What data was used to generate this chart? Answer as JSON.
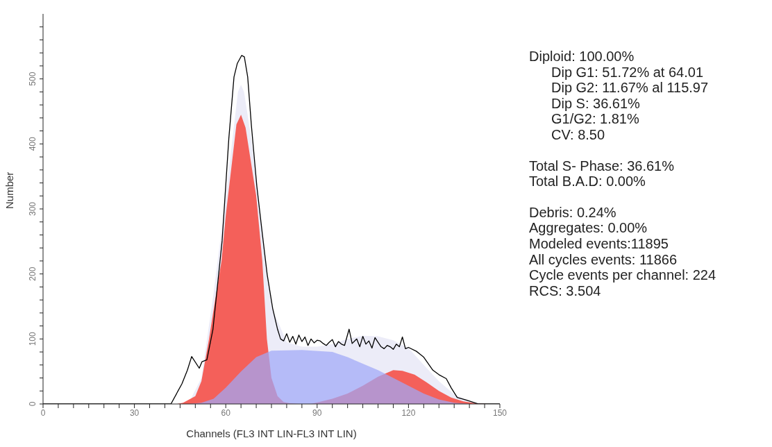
{
  "chart_data": {
    "type": "area",
    "xlabel": "Channels (FL3 INT LIN-FL3 INT LIN)",
    "ylabel": "Number",
    "xlim": [
      0,
      150
    ],
    "xticks": [
      0,
      {
        "value": 5,
        "label": null
      },
      {
        "value": 10,
        "label": null
      },
      {
        "value": 15,
        "label": null
      },
      {
        "value": 20,
        "label": null
      },
      {
        "value": 25,
        "label": null
      },
      30,
      {
        "value": 35,
        "label": null
      },
      {
        "value": 40,
        "label": null
      },
      {
        "value": 45,
        "label": null
      },
      {
        "value": 50,
        "label": null
      },
      {
        "value": 55,
        "label": null
      },
      60,
      {
        "value": 65,
        "label": null
      },
      {
        "value": 70,
        "label": null
      },
      {
        "value": 75,
        "label": null
      },
      {
        "value": 80,
        "label": null
      },
      {
        "value": 85,
        "label": null
      },
      90,
      {
        "value": 95,
        "label": null
      },
      {
        "value": 100,
        "label": null
      },
      {
        "value": 105,
        "label": null
      },
      {
        "value": 110,
        "label": null
      },
      {
        "value": 115,
        "label": null
      },
      120,
      {
        "value": 125,
        "label": null
      },
      {
        "value": 130,
        "label": null
      },
      {
        "value": 135,
        "label": null
      },
      {
        "value": 140,
        "label": null
      },
      {
        "value": 145,
        "label": null
      },
      150
    ],
    "ylim": [
      0,
      600
    ],
    "yticks": [
      0,
      {
        "value": 20,
        "label": null
      },
      {
        "value": 40,
        "label": null
      },
      {
        "value": 60,
        "label": null
      },
      {
        "value": 80,
        "label": null
      },
      100,
      {
        "value": 120,
        "label": null
      },
      {
        "value": 140,
        "label": null
      },
      {
        "value": 160,
        "label": null
      },
      {
        "value": 180,
        "label": null
      },
      200,
      {
        "value": 220,
        "label": null
      },
      {
        "value": 240,
        "label": null
      },
      {
        "value": 260,
        "label": null
      },
      {
        "value": 280,
        "label": null
      },
      300,
      {
        "value": 320,
        "label": null
      },
      {
        "value": 340,
        "label": null
      },
      {
        "value": 360,
        "label": null
      },
      {
        "value": 380,
        "label": null
      },
      400,
      {
        "value": 420,
        "label": null
      },
      {
        "value": 440,
        "label": null
      },
      {
        "value": 460,
        "label": null
      },
      {
        "value": 480,
        "label": null
      },
      500,
      {
        "value": 520,
        "label": null
      },
      {
        "value": 540,
        "label": null
      },
      {
        "value": 560,
        "label": null
      },
      {
        "value": 580,
        "label": null
      }
    ],
    "grid": false,
    "legend": false,
    "series": [
      {
        "color": "#ececf8",
        "x": [
          44,
          48,
          52,
          56,
          60,
          62,
          64,
          65,
          66,
          68,
          70,
          72,
          75,
          80,
          85,
          90,
          95,
          100,
          105,
          110,
          115,
          120,
          125,
          130,
          135,
          140,
          145
        ],
        "values": [
          0,
          3,
          40,
          170,
          320,
          400,
          480,
          491,
          480,
          420,
          350,
          260,
          150,
          95,
          88,
          88,
          92,
          100,
          105,
          104,
          98,
          86,
          60,
          35,
          15,
          4,
          0
        ]
      },
      {
        "color": "#f4605a",
        "x": [
          44,
          46,
          50,
          52,
          54.5,
          56.5,
          58.6,
          60,
          62,
          63.5,
          65,
          66.5,
          68,
          70,
          71,
          72,
          73.5,
          75,
          77,
          79,
          81,
          84
        ],
        "values": [
          0,
          2,
          12,
          35,
          100,
          160,
          220,
          290,
          370,
          430,
          445,
          425,
          380,
          320,
          270,
          220,
          100,
          40,
          12,
          3,
          1,
          0
        ]
      },
      {
        "color": "#f4605a",
        "x": [
          88,
          95,
          100,
          105,
          110,
          115,
          118,
          122,
          126,
          130,
          134,
          138,
          142,
          146
        ],
        "values": [
          0,
          8,
          16,
          28,
          42,
          52,
          51,
          45,
          33,
          20,
          10,
          4,
          1,
          0
        ]
      },
      {
        "color": "#a0a8f8",
        "x": [
          48,
          52,
          56,
          60,
          65,
          70,
          75,
          85,
          95,
          100,
          105,
          110,
          115,
          120,
          125,
          130,
          135,
          140
        ],
        "values": [
          0,
          2,
          8,
          25,
          50,
          72,
          82,
          83,
          80,
          72,
          62,
          52,
          40,
          28,
          16,
          7,
          2,
          0
        ]
      },
      {
        "type": "line",
        "color": "#000000",
        "x": [
          0,
          42,
          45.6,
          47.4,
          48.8,
          51.3,
          52.2,
          53.8,
          55.8,
          58.8,
          61,
          62.7,
          63.8,
          65.2,
          66.1,
          67.2,
          68.4,
          70.2,
          72,
          73.6,
          75.4,
          77,
          78,
          79,
          80,
          81,
          82,
          83,
          84,
          85,
          86,
          87,
          88,
          89,
          90,
          91,
          92,
          93,
          94,
          95,
          96,
          97,
          98,
          99,
          100.5,
          101.5,
          103,
          104,
          105,
          106,
          107,
          108,
          109,
          110,
          111,
          112,
          113,
          114,
          115,
          116,
          117,
          118,
          119,
          120,
          122.6,
          125,
          128,
          130,
          132.4,
          134,
          136,
          139,
          143,
          150
        ],
        "values": [
          0,
          0,
          31,
          52,
          73,
          55,
          65,
          68,
          115,
          251,
          408,
          503,
          524,
          536,
          534,
          503,
          429,
          335,
          262,
          199,
          147,
          115,
          100,
          97,
          108,
          95,
          104,
          92,
          106,
          96,
          103,
          90,
          100,
          94,
          98,
          97,
          93,
          90,
          95,
          99,
          88,
          96,
          92,
          90,
          115,
          93,
          100,
          88,
          104,
          92,
          97,
          86,
          102,
          95,
          88,
          85,
          90,
          88,
          84,
          92,
          88,
          103,
          85,
          87,
          81,
          72,
          52,
          45,
          39,
          25,
          10,
          6,
          0,
          0
        ]
      }
    ],
    "annotations": [
      "Diploid: 100.00%",
      "Dip G1: 51.72% at 64.01",
      "Dip G2: 11.67% al 115.97",
      "Dip S: 36.61%",
      "G1/G2: 1.81%",
      "CV: 8.50",
      "Total S- Phase: 36.61%",
      "Total B.A.D: 0.00%",
      "Debris: 0.24%",
      "Aggregates: 0.00%",
      "Modeled events:11895",
      "All cycles events: 11866",
      "Cycle events per channel: 224",
      "RCS: 3.504"
    ]
  }
}
